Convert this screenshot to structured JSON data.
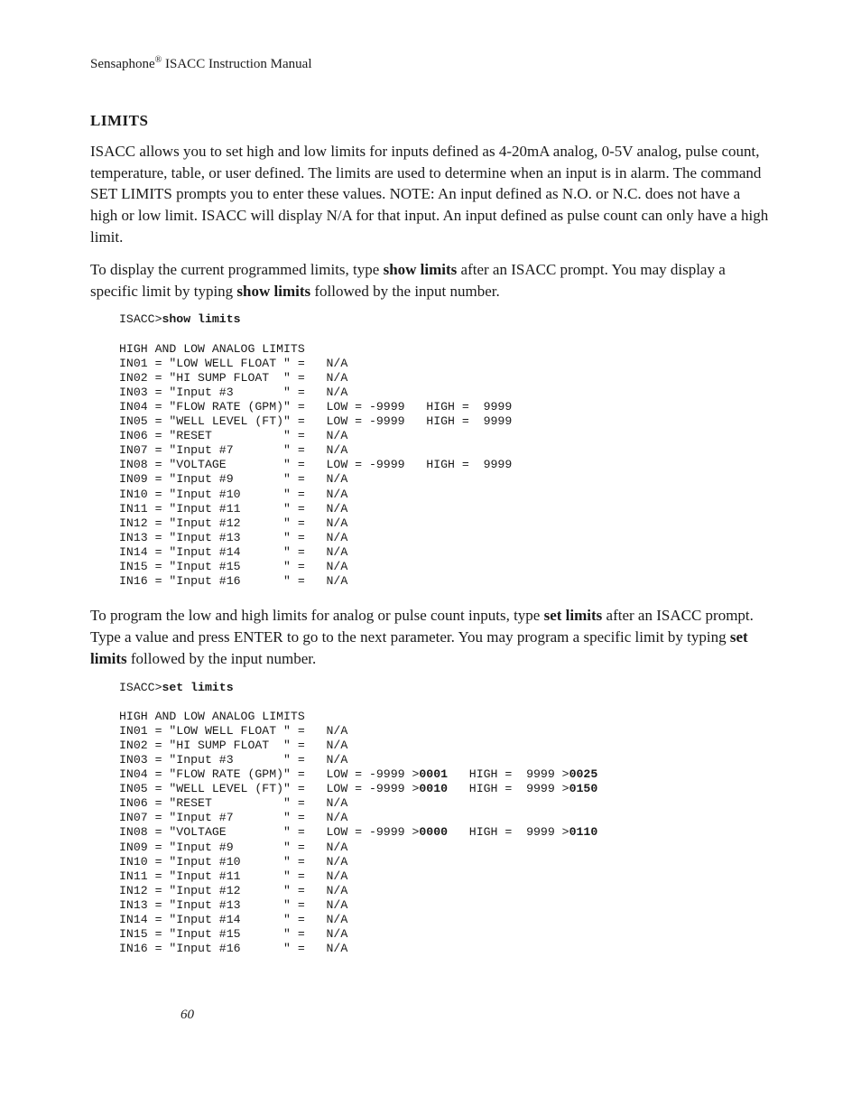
{
  "header": {
    "brand": "Sensaphone",
    "reg": "®",
    "product": " ISACC Instruction Manual"
  },
  "section_title": "LIMITS",
  "paragraphs": {
    "p1": "ISACC allows you to set high and low limits for inputs defined as 4-20mA analog, 0-5V analog, pulse count, temperature, table, or user defined.  The limits are used to determine when an input is in alarm.  The command SET LIMITS prompts you to enter these values.  NOTE: An input defined as N.O. or N.C. does not have a high or low limit.  ISACC will display N/A for that input.  An input defined as pulse count can only have a high limit.",
    "p2_a": "To display the current  programmed limits, type ",
    "p2_bold1": "show limits",
    "p2_b": " after an ISACC prompt.  You may display a specific limit by typing ",
    "p2_bold2": "show limits",
    "p2_c": " followed by the input number.",
    "p3_a": "To program the low and high limits for analog or pulse count inputs, type ",
    "p3_bold1": "set limits",
    "p3_b": " after an ISACC prompt.  Type a value and press ENTER to go to the next parameter.  You may program a specific limit by typing ",
    "p3_bold2": "set limits",
    "p3_c": " followed by the input number."
  },
  "code1": {
    "prompt": "ISACC>",
    "cmd": "show limits",
    "title": "HIGH AND LOW ANALOG LIMITS",
    "rows": [
      {
        "id": "IN01",
        "name": "LOW WELL FLOAT ",
        "val": "N/A",
        "low": null,
        "high": null,
        "lownew": null,
        "highnew": null
      },
      {
        "id": "IN02",
        "name": "HI SUMP FLOAT  ",
        "val": "N/A",
        "low": null,
        "high": null,
        "lownew": null,
        "highnew": null
      },
      {
        "id": "IN03",
        "name": "Input #3       ",
        "val": "N/A",
        "low": null,
        "high": null,
        "lownew": null,
        "highnew": null
      },
      {
        "id": "IN04",
        "name": "FLOW RATE (GPM)",
        "val": null,
        "low": "-9999",
        "high": " 9999",
        "lownew": null,
        "highnew": null
      },
      {
        "id": "IN05",
        "name": "WELL LEVEL (FT)",
        "val": null,
        "low": "-9999",
        "high": " 9999",
        "lownew": null,
        "highnew": null
      },
      {
        "id": "IN06",
        "name": "RESET          ",
        "val": "N/A",
        "low": null,
        "high": null,
        "lownew": null,
        "highnew": null
      },
      {
        "id": "IN07",
        "name": "Input #7       ",
        "val": "N/A",
        "low": null,
        "high": null,
        "lownew": null,
        "highnew": null
      },
      {
        "id": "IN08",
        "name": "VOLTAGE        ",
        "val": null,
        "low": "-9999",
        "high": " 9999",
        "lownew": null,
        "highnew": null
      },
      {
        "id": "IN09",
        "name": "Input #9       ",
        "val": "N/A",
        "low": null,
        "high": null,
        "lownew": null,
        "highnew": null
      },
      {
        "id": "IN10",
        "name": "Input #10      ",
        "val": "N/A",
        "low": null,
        "high": null,
        "lownew": null,
        "highnew": null
      },
      {
        "id": "IN11",
        "name": "Input #11      ",
        "val": "N/A",
        "low": null,
        "high": null,
        "lownew": null,
        "highnew": null
      },
      {
        "id": "IN12",
        "name": "Input #12      ",
        "val": "N/A",
        "low": null,
        "high": null,
        "lownew": null,
        "highnew": null
      },
      {
        "id": "IN13",
        "name": "Input #13      ",
        "val": "N/A",
        "low": null,
        "high": null,
        "lownew": null,
        "highnew": null
      },
      {
        "id": "IN14",
        "name": "Input #14      ",
        "val": "N/A",
        "low": null,
        "high": null,
        "lownew": null,
        "highnew": null
      },
      {
        "id": "IN15",
        "name": "Input #15      ",
        "val": "N/A",
        "low": null,
        "high": null,
        "lownew": null,
        "highnew": null
      },
      {
        "id": "IN16",
        "name": "Input #16      ",
        "val": "N/A",
        "low": null,
        "high": null,
        "lownew": null,
        "highnew": null
      }
    ]
  },
  "code2": {
    "prompt": "ISACC>",
    "cmd": "set limits",
    "title": "HIGH AND LOW ANALOG LIMITS",
    "rows": [
      {
        "id": "IN01",
        "name": "LOW WELL FLOAT ",
        "val": "N/A",
        "low": null,
        "high": null,
        "lownew": null,
        "highnew": null
      },
      {
        "id": "IN02",
        "name": "HI SUMP FLOAT  ",
        "val": "N/A",
        "low": null,
        "high": null,
        "lownew": null,
        "highnew": null
      },
      {
        "id": "IN03",
        "name": "Input #3       ",
        "val": "N/A",
        "low": null,
        "high": null,
        "lownew": null,
        "highnew": null
      },
      {
        "id": "IN04",
        "name": "FLOW RATE (GPM)",
        "val": null,
        "low": "-9999",
        "high": " 9999",
        "lownew": "0001",
        "highnew": "0025"
      },
      {
        "id": "IN05",
        "name": "WELL LEVEL (FT)",
        "val": null,
        "low": "-9999",
        "high": " 9999",
        "lownew": "0010",
        "highnew": "0150"
      },
      {
        "id": "IN06",
        "name": "RESET          ",
        "val": "N/A",
        "low": null,
        "high": null,
        "lownew": null,
        "highnew": null
      },
      {
        "id": "IN07",
        "name": "Input #7       ",
        "val": "N/A",
        "low": null,
        "high": null,
        "lownew": null,
        "highnew": null
      },
      {
        "id": "IN08",
        "name": "VOLTAGE        ",
        "val": null,
        "low": "-9999",
        "high": " 9999",
        "lownew": "0000",
        "highnew": "0110"
      },
      {
        "id": "IN09",
        "name": "Input #9       ",
        "val": "N/A",
        "low": null,
        "high": null,
        "lownew": null,
        "highnew": null
      },
      {
        "id": "IN10",
        "name": "Input #10      ",
        "val": "N/A",
        "low": null,
        "high": null,
        "lownew": null,
        "highnew": null
      },
      {
        "id": "IN11",
        "name": "Input #11      ",
        "val": "N/A",
        "low": null,
        "high": null,
        "lownew": null,
        "highnew": null
      },
      {
        "id": "IN12",
        "name": "Input #12      ",
        "val": "N/A",
        "low": null,
        "high": null,
        "lownew": null,
        "highnew": null
      },
      {
        "id": "IN13",
        "name": "Input #13      ",
        "val": "N/A",
        "low": null,
        "high": null,
        "lownew": null,
        "highnew": null
      },
      {
        "id": "IN14",
        "name": "Input #14      ",
        "val": "N/A",
        "low": null,
        "high": null,
        "lownew": null,
        "highnew": null
      },
      {
        "id": "IN15",
        "name": "Input #15      ",
        "val": "N/A",
        "low": null,
        "high": null,
        "lownew": null,
        "highnew": null
      },
      {
        "id": "IN16",
        "name": "Input #16      ",
        "val": "N/A",
        "low": null,
        "high": null,
        "lownew": null,
        "highnew": null
      }
    ]
  },
  "page_number": "60"
}
